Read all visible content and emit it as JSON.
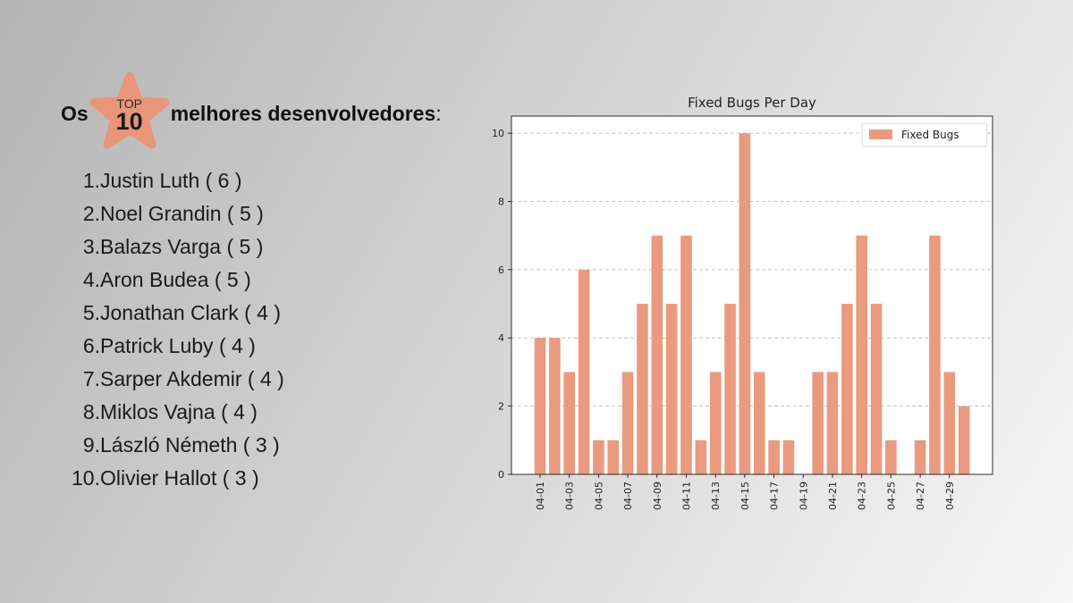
{
  "heading": {
    "prefix": "Os",
    "badge_top": "TOP",
    "badge_number": "10",
    "suffix": "melhores desenvolvedores",
    "colon": ":"
  },
  "developers": [
    {
      "rank": "1.",
      "label": "Justin Luth ( 6 )"
    },
    {
      "rank": "2.",
      "label": "Noel Grandin ( 5 )"
    },
    {
      "rank": "3.",
      "label": "Balazs Varga ( 5 )"
    },
    {
      "rank": "4.",
      "label": "Aron Budea ( 5 )"
    },
    {
      "rank": "5.",
      "label": "Jonathan Clark ( 4 )"
    },
    {
      "rank": "6.",
      "label": "Patrick Luby ( 4 )"
    },
    {
      "rank": "7.",
      "label": "Sarper Akdemir ( 4 )"
    },
    {
      "rank": "8.",
      "label": "Miklos Vajna ( 4 )"
    },
    {
      "rank": "9.",
      "label": "László Németh ( 3 )"
    },
    {
      "rank": "10.",
      "label": "Olivier Hallot ( 3 )"
    }
  ],
  "colors": {
    "bar": "#e99a7f",
    "badge": "#e8957a"
  },
  "chart_data": {
    "type": "bar",
    "title": "Fixed Bugs Per Day",
    "xlabel": "",
    "ylabel": "",
    "ylim": [
      0,
      10.5
    ],
    "yticks": [
      0,
      2,
      4,
      6,
      8,
      10
    ],
    "grid": "y-dashed",
    "legend": {
      "position": "top-right",
      "entries": [
        "Fixed Bugs"
      ]
    },
    "categories": [
      "04-01",
      "04-02",
      "04-03",
      "04-04",
      "04-05",
      "04-06",
      "04-07",
      "04-08",
      "04-09",
      "04-10",
      "04-11",
      "04-12",
      "04-13",
      "04-14",
      "04-15",
      "04-16",
      "04-17",
      "04-18",
      "04-19",
      "04-20",
      "04-21",
      "04-22",
      "04-23",
      "04-24",
      "04-25",
      "04-26",
      "04-27",
      "04-28",
      "04-29",
      "04-30"
    ],
    "tick_labels": [
      "04-01",
      "04-03",
      "04-05",
      "04-07",
      "04-09",
      "04-11",
      "04-13",
      "04-15",
      "04-17",
      "04-19",
      "04-21",
      "04-23",
      "04-25",
      "04-27",
      "04-29"
    ],
    "series": [
      {
        "name": "Fixed Bugs",
        "values": [
          4,
          4,
          3,
          6,
          1,
          1,
          3,
          5,
          7,
          5,
          7,
          1,
          3,
          5,
          10,
          3,
          1,
          1,
          0,
          3,
          3,
          5,
          7,
          5,
          1,
          0,
          1,
          7,
          3,
          2
        ]
      }
    ]
  }
}
